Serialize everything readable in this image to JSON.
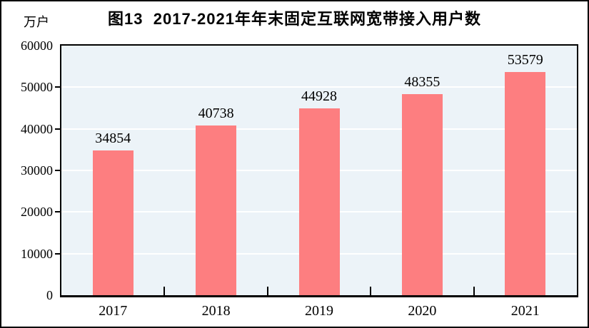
{
  "figure": {
    "unit_label": "万户",
    "title": "图13  2017-2021年年末固定互联网宽带接入用户数"
  },
  "chart_data": {
    "type": "bar",
    "title": "图13  2017-2021年年末固定互联网宽带接入用户数",
    "unit": "万户",
    "categories": [
      "2017",
      "2018",
      "2019",
      "2020",
      "2021"
    ],
    "values": [
      34854,
      40738,
      44928,
      48355,
      53579
    ],
    "ylim": [
      0,
      60000
    ],
    "yticks": [
      0,
      10000,
      20000,
      30000,
      40000,
      50000,
      60000
    ],
    "grid": true,
    "legend": "none",
    "colors": {
      "bar": "#fd7e80",
      "plot_background": "#ecf3f8",
      "gridline": "#ffffff",
      "axis": "#000000",
      "text": "#000000",
      "page_background": "#ffffff"
    }
  }
}
